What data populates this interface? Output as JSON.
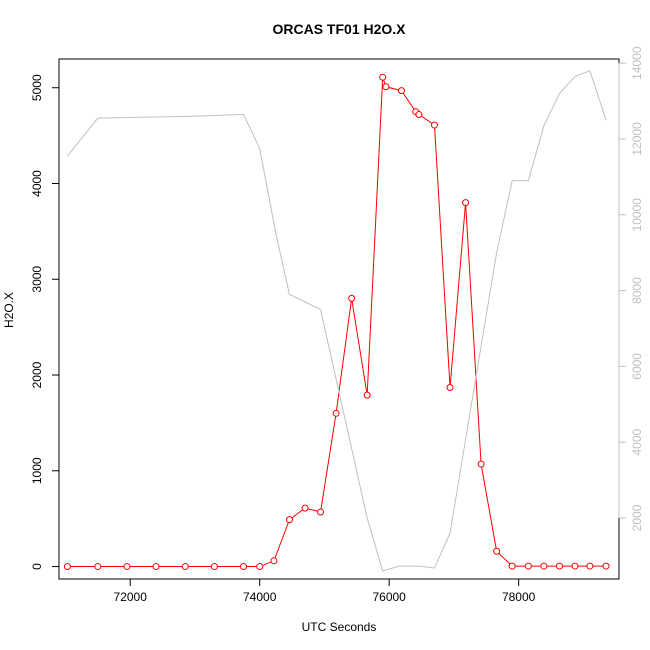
{
  "chart_data": {
    "type": "line",
    "title": "ORCAS TF01 H2O.X",
    "xlabel": "UTC Seconds",
    "ylabel": "H2O.X",
    "y2label": "",
    "xlim": [
      70900,
      79550
    ],
    "ylim": [
      -130,
      5300
    ],
    "y2lim": [
      390,
      14110
    ],
    "x_ticks": [
      72000,
      74000,
      76000,
      78000
    ],
    "y_ticks": [
      0,
      1000,
      2000,
      3000,
      4000,
      5000
    ],
    "y2_ticks": [
      2000,
      4000,
      6000,
      8000,
      10000,
      12000,
      14000
    ],
    "grid": false,
    "series": [
      {
        "axis": "left",
        "color": "#ff0000",
        "marker": "open-circle",
        "x": [
          71030,
          71500,
          71950,
          72400,
          72850,
          73300,
          73750,
          74000,
          74220,
          74460,
          74700,
          74940,
          75180,
          75420,
          75660,
          75900,
          75950,
          76190,
          76410,
          76460,
          76700,
          76940,
          77180,
          77420,
          77660,
          77900,
          78150,
          78390,
          78630,
          78870,
          79100,
          79350
        ],
        "values": [
          0,
          0,
          0,
          0,
          0,
          0,
          0,
          0,
          60,
          490,
          610,
          570,
          1600,
          2800,
          1790,
          5110,
          5010,
          4970,
          4750,
          4720,
          4610,
          1870,
          3800,
          1070,
          160,
          5,
          5,
          5,
          5,
          5,
          5,
          5
        ]
      },
      {
        "axis": "right",
        "color": "#c0c0c0",
        "marker": "none",
        "x": [
          71030,
          71500,
          73000,
          73750,
          74000,
          74250,
          74460,
          74940,
          75660,
          75900,
          76150,
          76460,
          76700,
          76940,
          77660,
          77900,
          78150,
          78390,
          78630,
          78870,
          79100,
          79350
        ],
        "values": [
          11550,
          12550,
          12600,
          12650,
          11750,
          9500,
          7900,
          7500,
          2000,
          600,
          730,
          730,
          680,
          1600,
          9000,
          10900,
          10900,
          12350,
          13200,
          13650,
          13800,
          12500
        ]
      }
    ]
  }
}
